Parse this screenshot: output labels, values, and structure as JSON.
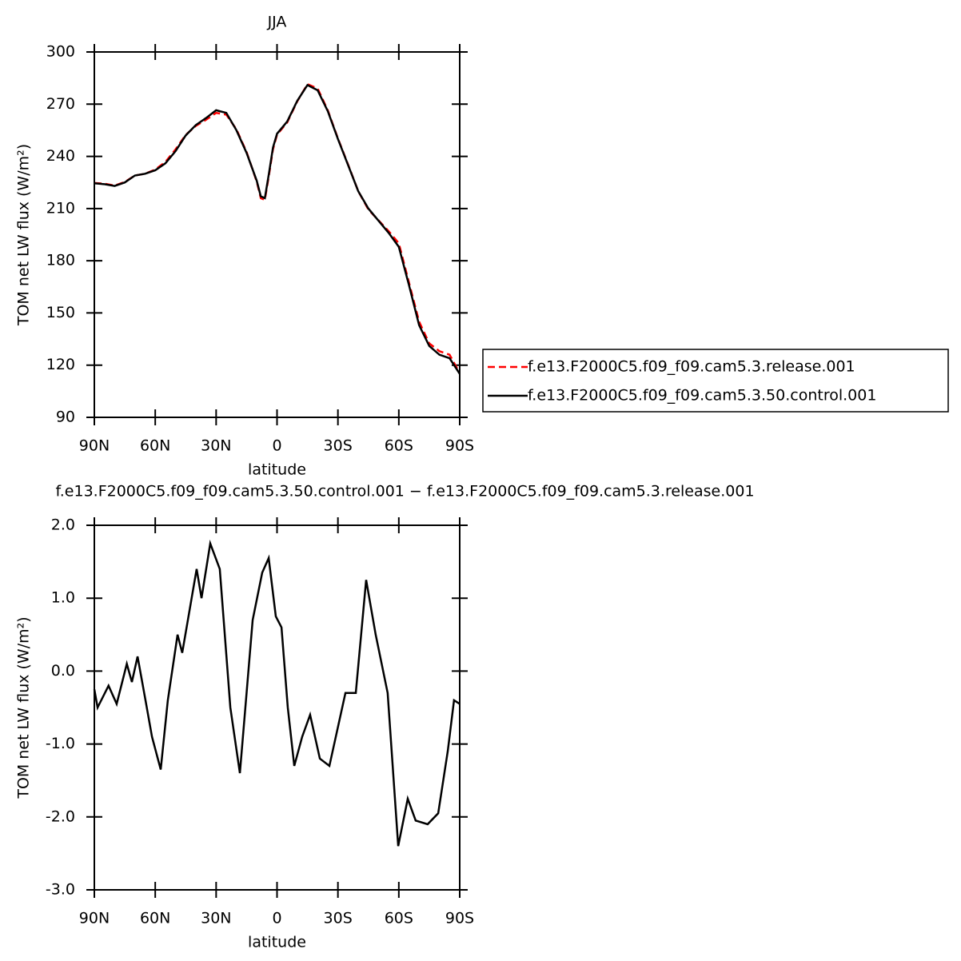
{
  "chart_data": [
    {
      "type": "line",
      "title": "JJA",
      "xlabel": "latitude",
      "ylabel": "TOM net LW flux (W/m²)",
      "x": [
        90,
        85,
        80,
        75,
        70,
        65,
        60,
        55,
        50,
        45,
        40,
        35,
        30,
        25,
        20,
        15,
        10,
        8,
        6,
        4,
        2,
        0,
        -5,
        -10,
        -15,
        -20,
        -25,
        -30,
        -35,
        -40,
        -45,
        -50,
        -55,
        -60,
        -65,
        -70,
        -75,
        -80,
        -85,
        -90
      ],
      "series": [
        {
          "name": "f.e13.F2000C5.f09_f09.cam5.3.release.001",
          "color": "#ff0000",
          "line_style": "dashed",
          "values": [
            224.7,
            224.3,
            223.2,
            225.3,
            229,
            230,
            232.4,
            236.8,
            244,
            252.3,
            257.5,
            261,
            265,
            264,
            255.5,
            242.5,
            225.5,
            216,
            215,
            229,
            244,
            252.5,
            259.5,
            271.7,
            281.5,
            279,
            266.5,
            250.3,
            235.3,
            220,
            209.5,
            203.2,
            197,
            190,
            167.5,
            145,
            132.5,
            128,
            126,
            115.4
          ]
        },
        {
          "name": "f.e13.F2000C5.f09_f09.cam5.3.50.control.001",
          "color": "#000000",
          "line_style": "solid",
          "values": [
            224.5,
            224,
            223,
            225,
            229,
            230,
            232,
            236,
            243,
            252,
            258,
            262,
            266.5,
            265,
            255,
            242,
            226,
            217,
            216,
            230,
            245,
            253,
            260,
            272,
            281,
            278,
            266,
            250,
            235,
            220,
            210,
            203,
            196,
            188,
            166,
            143,
            131,
            126,
            124,
            115
          ]
        }
      ],
      "xlim": [
        90,
        -90
      ],
      "xticks": [
        {
          "value": 90,
          "label": "90N"
        },
        {
          "value": 60,
          "label": "60N"
        },
        {
          "value": 30,
          "label": "30N"
        },
        0,
        {
          "value": -30,
          "label": "30S"
        },
        {
          "value": -60,
          "label": "60S"
        },
        {
          "value": -90,
          "label": "90S"
        }
      ],
      "ylim": [
        90,
        300
      ],
      "yticks": [
        90,
        120,
        150,
        180,
        210,
        240,
        270,
        300
      ],
      "legend": "outside-right"
    },
    {
      "type": "line",
      "title": "f.e13.F2000C5.f09_f09.cam5.3.50.control.001 − f.e13.F2000C5.f09_f09.cam5.3.release.001",
      "xlabel": "latitude",
      "ylabel": "TOM net LW flux (W/m²)",
      "x": [
        90,
        88.4,
        83,
        79,
        74,
        71.5,
        68.7,
        64.8,
        61.6,
        57.3,
        53.8,
        49,
        46.7,
        39.6,
        37.2,
        32.9,
        28.2,
        23,
        18.3,
        12,
        7.3,
        4.1,
        0.6,
        -2.2,
        -5.3,
        -8.5,
        -12.4,
        -16.3,
        -21.1,
        -25.8,
        -33.7,
        -38.8,
        -43.9,
        -48.6,
        -54.5,
        -59.7,
        -64.4,
        -68.3,
        -74.2,
        -79.4,
        -84.1,
        -87.2,
        -90
      ],
      "color": "#000000",
      "values": [
        -0.25,
        -0.5,
        -0.2,
        -0.45,
        0.1,
        -0.15,
        0.2,
        -0.4,
        -0.9,
        -1.35,
        -0.4,
        0.5,
        0.25,
        1.4,
        1.0,
        1.75,
        1.4,
        -0.5,
        -1.4,
        0.7,
        1.35,
        1.55,
        0.75,
        0.6,
        -0.5,
        -1.3,
        -0.9,
        -0.6,
        -1.2,
        -1.3,
        -0.3,
        -0.3,
        1.25,
        0.5,
        -0.3,
        -2.4,
        -1.75,
        -2.05,
        -2.1,
        -1.95,
        -1.1,
        -0.4,
        -0.45
      ],
      "xlim": [
        90,
        -90
      ],
      "xticks": [
        {
          "value": 90,
          "label": "90N"
        },
        {
          "value": 60,
          "label": "60N"
        },
        {
          "value": 30,
          "label": "30N"
        },
        0,
        {
          "value": -30,
          "label": "30S"
        },
        {
          "value": -60,
          "label": "60S"
        },
        {
          "value": -90,
          "label": "90S"
        }
      ],
      "ylim": [
        -3,
        2
      ],
      "yticks": [
        {
          "value": 2,
          "label": "2.0"
        },
        {
          "value": 1,
          "label": "1.0"
        },
        {
          "value": 0,
          "label": "0.0"
        },
        {
          "value": -1,
          "label": "-1.0"
        },
        {
          "value": -2,
          "label": "-2.0"
        },
        {
          "value": -3,
          "label": "-3.0"
        }
      ]
    }
  ]
}
